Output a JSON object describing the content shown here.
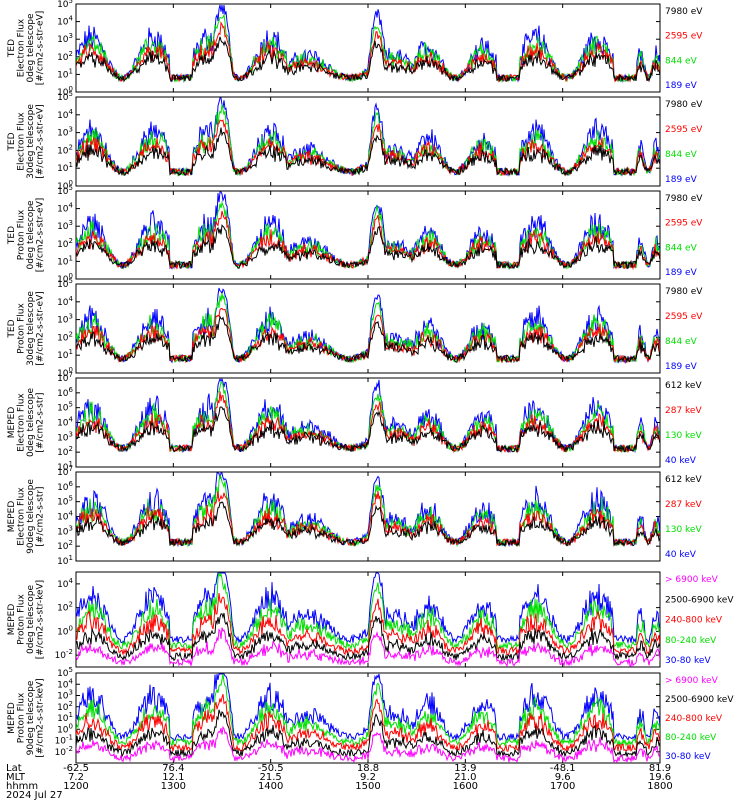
{
  "figure": {
    "time_ticks": [
      "1200",
      "1300",
      "1400",
      "1500",
      "1600",
      "1700",
      "1800"
    ],
    "footer": {
      "row_labels": [
        "Lat",
        "MLT",
        "hhmm"
      ],
      "date": "2024 Jul 27",
      "lat": [
        "-62.5",
        "76.4",
        "-50.5",
        "18.8",
        "13.9",
        "-48.1",
        "81.9"
      ],
      "mlt": [
        "7.2",
        "12.1",
        "21.5",
        "9.2",
        "21.0",
        "9.6",
        "19.6"
      ],
      "hhmm": [
        "1200",
        "1300",
        "1400",
        "1500",
        "1600",
        "1700",
        "1800"
      ]
    }
  },
  "chart_data": [
    {
      "type": "line",
      "ylabel": [
        "TED",
        "Electron Flux",
        "0deg telescope",
        "[#/cm2-s-str-eV]"
      ],
      "yscale": "log",
      "ylim_exp": [
        0,
        5
      ],
      "ytick_exps": [
        0,
        1,
        2,
        3,
        4,
        5
      ],
      "xlabel": "hhmm",
      "x_range": [
        "1200",
        "1800"
      ],
      "series": [
        {
          "name": "7980 eV",
          "color": "#000000"
        },
        {
          "name": "2595 eV",
          "color": "#ff0000"
        },
        {
          "name": "844 eV",
          "color": "#00e000"
        },
        {
          "name": "189 eV",
          "color": "#0000ff"
        }
      ]
    },
    {
      "type": "line",
      "ylabel": [
        "TED",
        "Electron Flux",
        "30deg telescope",
        "[#/cm2-s-str-eV]"
      ],
      "yscale": "log",
      "ylim_exp": [
        0,
        5
      ],
      "ytick_exps": [
        0,
        1,
        2,
        3,
        4,
        5
      ],
      "series": [
        {
          "name": "7980 eV",
          "color": "#000000"
        },
        {
          "name": "2595 eV",
          "color": "#ff0000"
        },
        {
          "name": "844 eV",
          "color": "#00e000"
        },
        {
          "name": "189 eV",
          "color": "#0000ff"
        }
      ]
    },
    {
      "type": "line",
      "ylabel": [
        "TED",
        "Proton Flux",
        "0deg telescope",
        "[#/cm2-s-str-eV]"
      ],
      "yscale": "log",
      "ylim_exp": [
        0,
        5
      ],
      "ytick_exps": [
        0,
        1,
        2,
        3,
        4,
        5
      ],
      "series": [
        {
          "name": "7980 eV",
          "color": "#000000"
        },
        {
          "name": "2595 eV",
          "color": "#ff0000"
        },
        {
          "name": "844 eV",
          "color": "#00e000"
        },
        {
          "name": "189 eV",
          "color": "#0000ff"
        }
      ]
    },
    {
      "type": "line",
      "ylabel": [
        "TED",
        "Proton Flux",
        "30deg telescope",
        "[#/cm2-s-str-eV]"
      ],
      "yscale": "log",
      "ylim_exp": [
        0,
        5
      ],
      "ytick_exps": [
        0,
        1,
        2,
        3,
        4,
        5
      ],
      "series": [
        {
          "name": "7980 eV",
          "color": "#000000"
        },
        {
          "name": "2595 eV",
          "color": "#ff0000"
        },
        {
          "name": "844 eV",
          "color": "#00e000"
        },
        {
          "name": "189 eV",
          "color": "#0000ff"
        }
      ]
    },
    {
      "type": "line",
      "ylabel": [
        "MEPED",
        "Electron Flux",
        "0deg telescope",
        "[#/cm2-s-str]"
      ],
      "yscale": "log",
      "ylim_exp": [
        1,
        7
      ],
      "ytick_exps": [
        1,
        2,
        3,
        4,
        5,
        6,
        7
      ],
      "series": [
        {
          "name": "612 keV",
          "color": "#000000"
        },
        {
          "name": "287 keV",
          "color": "#ff0000"
        },
        {
          "name": "130 keV",
          "color": "#00e000"
        },
        {
          "name": "40 keV",
          "color": "#0000ff"
        }
      ]
    },
    {
      "type": "line",
      "ylabel": [
        "MEPED",
        "Electron Flux",
        "90deg telescope",
        "[#/cm2-s-str]"
      ],
      "yscale": "log",
      "ylim_exp": [
        1,
        7
      ],
      "ytick_exps": [
        1,
        2,
        3,
        4,
        5,
        6,
        7
      ],
      "series": [
        {
          "name": "612 keV",
          "color": "#000000"
        },
        {
          "name": "287 keV",
          "color": "#ff0000"
        },
        {
          "name": "130 keV",
          "color": "#00e000"
        },
        {
          "name": "40 keV",
          "color": "#0000ff"
        }
      ]
    },
    {
      "type": "line",
      "ylabel": [
        "MEPED",
        "Proton Flux",
        "0deg telescope",
        "[#/cm2-s-str-keV]"
      ],
      "yscale": "log",
      "ylim_exp": [
        -3,
        5
      ],
      "ytick_exps": [
        -2,
        0,
        2,
        4
      ],
      "series": [
        {
          "name": "> 6900 keV",
          "color": "#ff00ff"
        },
        {
          "name": "2500-6900 keV",
          "color": "#000000"
        },
        {
          "name": "240-800 keV",
          "color": "#ff0000"
        },
        {
          "name": "80-240 keV",
          "color": "#00e000"
        },
        {
          "name": "30-80 keV",
          "color": "#0000ff"
        }
      ]
    },
    {
      "type": "line",
      "ylabel": [
        "MEPED",
        "Proton Flux",
        "90deg telescope",
        "[#/cm2-s-str-keV]"
      ],
      "yscale": "log",
      "ylim_exp": [
        -3,
        5
      ],
      "ytick_exps": [
        -2,
        -1,
        0,
        1,
        2,
        3,
        4,
        5
      ],
      "series": [
        {
          "name": "> 6900 keV",
          "color": "#ff00ff"
        },
        {
          "name": "2500-6900 keV",
          "color": "#000000"
        },
        {
          "name": "240-800 keV",
          "color": "#ff0000"
        },
        {
          "name": "80-240 keV",
          "color": "#00e000"
        },
        {
          "name": "30-80 keV",
          "color": "#0000ff"
        }
      ]
    }
  ]
}
